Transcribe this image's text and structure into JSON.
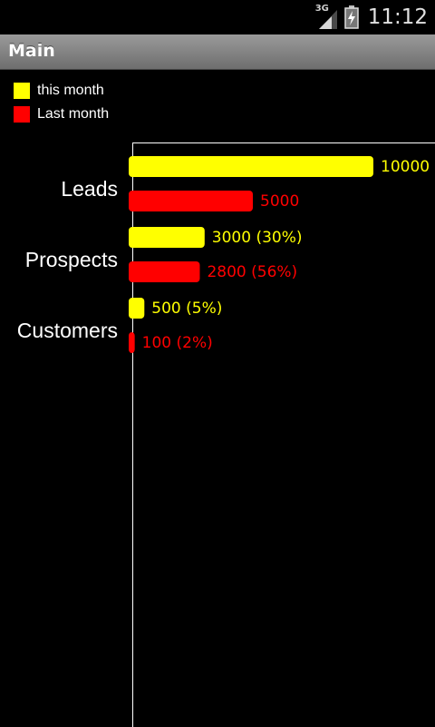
{
  "status_bar": {
    "network_label": "3G",
    "time": "11:12",
    "icons": [
      "signal-icon",
      "battery-charging-icon"
    ]
  },
  "title_bar": {
    "title": "Main"
  },
  "colors": {
    "this_month": "#ffff00",
    "last_month": "#ff0000",
    "axis": "#ffffff",
    "category_label": "#ffffff"
  },
  "chart_data": {
    "type": "bar",
    "orientation": "horizontal",
    "categories": [
      "Leads",
      "Prospects",
      "Customers"
    ],
    "series": [
      {
        "name": "this month",
        "color": "#ffff00",
        "values": [
          10000,
          3000,
          500
        ],
        "labels": [
          "10000",
          "3000 (30%)",
          "500 (5%)"
        ]
      },
      {
        "name": "Last month",
        "color": "#ff0000",
        "values": [
          5000,
          2800,
          100
        ],
        "labels": [
          "5000",
          "2800 (56%)",
          "100 (2%)"
        ]
      }
    ],
    "xlim": [
      0,
      10000
    ],
    "legend_position": "top-left",
    "grid": false
  }
}
